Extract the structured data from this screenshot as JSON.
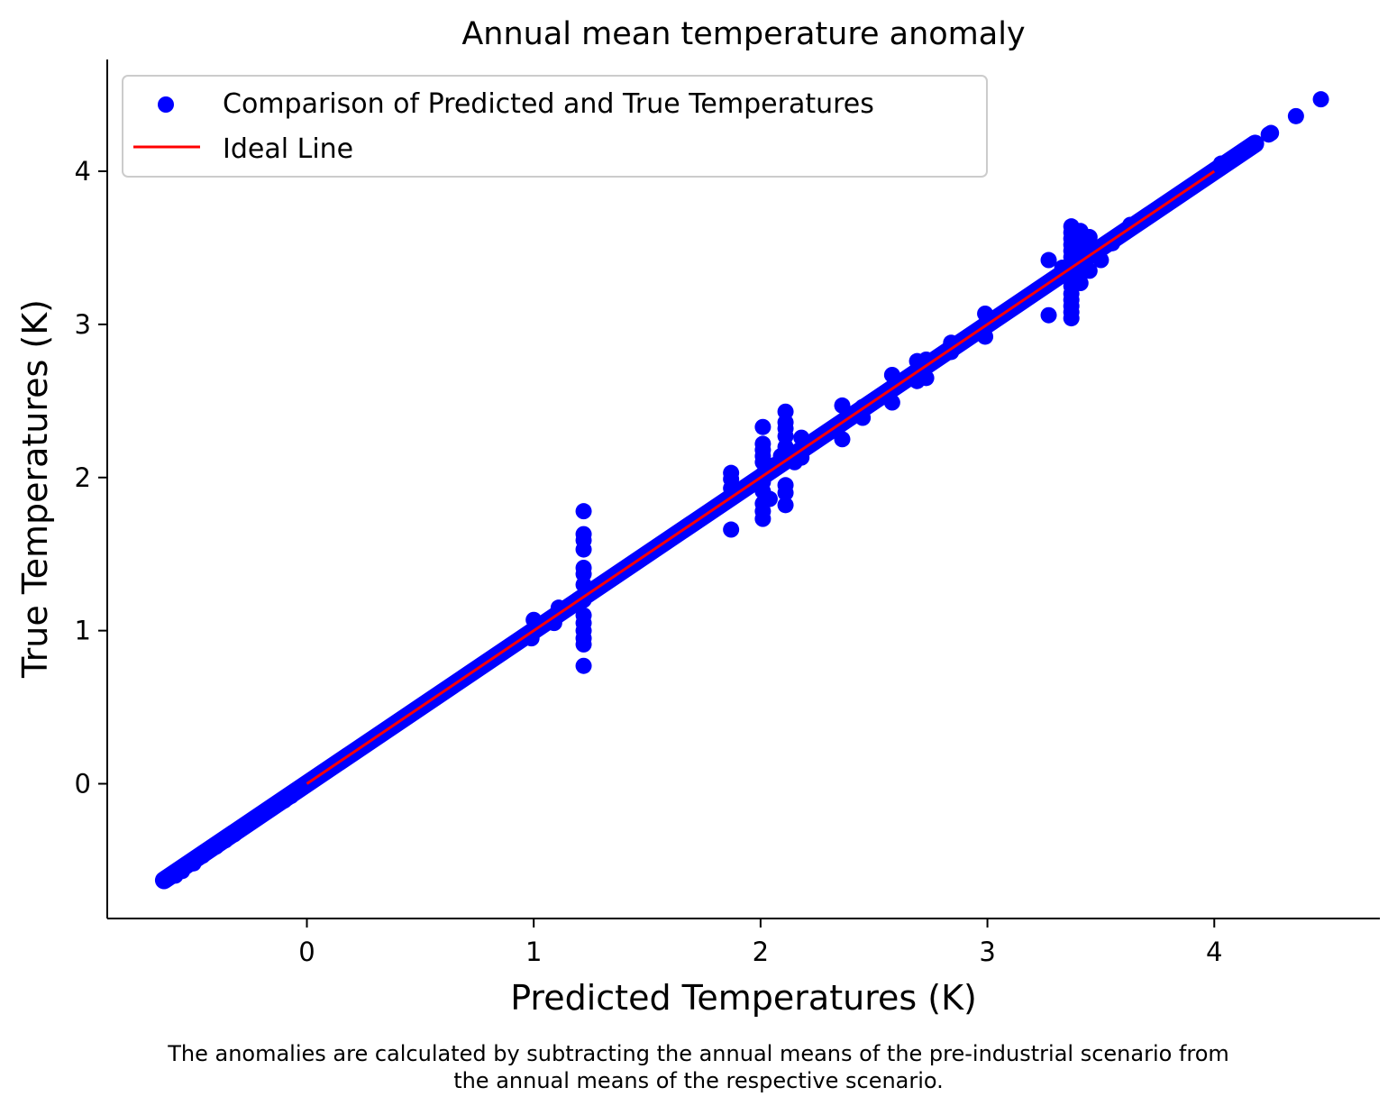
{
  "chart_data": {
    "type": "scatter",
    "title": "Annual mean temperature anomaly",
    "xlabel": "Predicted Temperatures (K)",
    "ylabel": "True Temperatures (K)",
    "xlim": [
      -0.88,
      4.73
    ],
    "ylim": [
      -0.88,
      4.73
    ],
    "xticks": [
      0,
      1,
      2,
      3,
      4
    ],
    "yticks": [
      0,
      1,
      2,
      3,
      4
    ],
    "xtick_labels": [
      "0",
      "1",
      "2",
      "3",
      "4"
    ],
    "ytick_labels": [
      "0",
      "1",
      "2",
      "3",
      "4"
    ],
    "grid": false,
    "legend_position": "top-left",
    "legend": [
      {
        "label": "Comparison of Predicted and True Temperatures",
        "kind": "scatter",
        "color": "#0000ff"
      },
      {
        "label": "Ideal Line",
        "kind": "line",
        "color": "#ff0000"
      }
    ],
    "series": [
      {
        "name": "Comparison of Predicted and True Temperatures",
        "color": "#0000ff",
        "diagonal_band": [
          -0.63,
          4.18
        ],
        "points": [
          [
            -0.63,
            -0.63
          ],
          [
            -0.58,
            -0.6
          ],
          [
            -0.55,
            -0.57
          ],
          [
            -0.5,
            -0.52
          ],
          [
            -0.46,
            -0.47
          ],
          [
            -0.4,
            -0.41
          ],
          [
            -0.36,
            -0.37
          ],
          [
            -0.32,
            -0.33
          ],
          [
            -0.27,
            -0.27
          ],
          [
            -0.24,
            -0.24
          ],
          [
            -0.19,
            -0.19
          ],
          [
            -0.12,
            -0.12
          ],
          [
            -0.1,
            -0.11
          ],
          [
            -0.07,
            -0.08
          ],
          [
            0.99,
            0.95
          ],
          [
            1.0,
            1.07
          ],
          [
            1.09,
            1.05
          ],
          [
            1.11,
            1.15
          ],
          [
            1.22,
            0.77
          ],
          [
            1.22,
            0.91
          ],
          [
            1.22,
            0.95
          ],
          [
            1.22,
            1.0
          ],
          [
            1.22,
            1.05
          ],
          [
            1.22,
            1.1
          ],
          [
            1.22,
            1.2
          ],
          [
            1.22,
            1.3
          ],
          [
            1.22,
            1.37
          ],
          [
            1.22,
            1.41
          ],
          [
            1.22,
            1.53
          ],
          [
            1.22,
            1.59
          ],
          [
            1.22,
            1.63
          ],
          [
            1.22,
            1.78
          ],
          [
            1.87,
            1.66
          ],
          [
            1.87,
            1.93
          ],
          [
            1.87,
            1.99
          ],
          [
            1.87,
            2.03
          ],
          [
            2.01,
            1.73
          ],
          [
            2.01,
            1.78
          ],
          [
            2.01,
            1.83
          ],
          [
            2.01,
            1.91
          ],
          [
            2.01,
            1.97
          ],
          [
            2.01,
            2.02
          ],
          [
            2.01,
            2.1
          ],
          [
            2.01,
            2.14
          ],
          [
            2.01,
            2.18
          ],
          [
            2.01,
            2.22
          ],
          [
            2.01,
            2.33
          ],
          [
            2.04,
            1.86
          ],
          [
            2.04,
            2.05
          ],
          [
            2.06,
            2.08
          ],
          [
            2.09,
            2.14
          ],
          [
            2.11,
            1.82
          ],
          [
            2.11,
            1.9
          ],
          [
            2.11,
            1.95
          ],
          [
            2.11,
            2.2
          ],
          [
            2.11,
            2.27
          ],
          [
            2.11,
            2.32
          ],
          [
            2.11,
            2.36
          ],
          [
            2.11,
            2.43
          ],
          [
            2.15,
            2.1
          ],
          [
            2.18,
            2.26
          ],
          [
            2.18,
            2.13
          ],
          [
            2.36,
            2.25
          ],
          [
            2.36,
            2.47
          ],
          [
            2.45,
            2.39
          ],
          [
            2.45,
            2.46
          ],
          [
            2.58,
            2.49
          ],
          [
            2.58,
            2.67
          ],
          [
            2.69,
            2.63
          ],
          [
            2.69,
            2.76
          ],
          [
            2.73,
            2.65
          ],
          [
            2.73,
            2.77
          ],
          [
            2.84,
            2.82
          ],
          [
            2.84,
            2.88
          ],
          [
            2.99,
            2.92
          ],
          [
            2.99,
            3.07
          ],
          [
            3.27,
            3.06
          ],
          [
            3.27,
            3.42
          ],
          [
            3.3,
            3.3
          ],
          [
            3.33,
            3.37
          ],
          [
            3.37,
            3.04
          ],
          [
            3.37,
            3.08
          ],
          [
            3.37,
            3.12
          ],
          [
            3.37,
            3.16
          ],
          [
            3.37,
            3.2
          ],
          [
            3.37,
            3.25
          ],
          [
            3.37,
            3.3
          ],
          [
            3.37,
            3.38
          ],
          [
            3.37,
            3.44
          ],
          [
            3.37,
            3.48
          ],
          [
            3.37,
            3.52
          ],
          [
            3.37,
            3.56
          ],
          [
            3.37,
            3.6
          ],
          [
            3.37,
            3.64
          ],
          [
            3.41,
            3.27
          ],
          [
            3.41,
            3.33
          ],
          [
            3.41,
            3.4
          ],
          [
            3.41,
            3.48
          ],
          [
            3.41,
            3.54
          ],
          [
            3.41,
            3.61
          ],
          [
            3.45,
            3.35
          ],
          [
            3.45,
            3.45
          ],
          [
            3.45,
            3.5
          ],
          [
            3.45,
            3.57
          ],
          [
            3.5,
            3.42
          ],
          [
            3.5,
            3.5
          ],
          [
            3.55,
            3.53
          ],
          [
            3.63,
            3.65
          ],
          [
            4.03,
            4.05
          ],
          [
            4.1,
            4.1
          ],
          [
            4.18,
            4.18
          ],
          [
            4.24,
            4.24
          ],
          [
            4.25,
            4.25
          ],
          [
            4.36,
            4.36
          ],
          [
            4.47,
            4.47
          ]
        ]
      },
      {
        "name": "Ideal Line",
        "color": "#ff0000",
        "x": [
          0,
          4
        ],
        "y": [
          0,
          4
        ]
      }
    ]
  },
  "caption": {
    "line1": "The anomalies are calculated by subtracting the annual means of the pre-industrial scenario from",
    "line2": "the annual means of the respective scenario."
  }
}
